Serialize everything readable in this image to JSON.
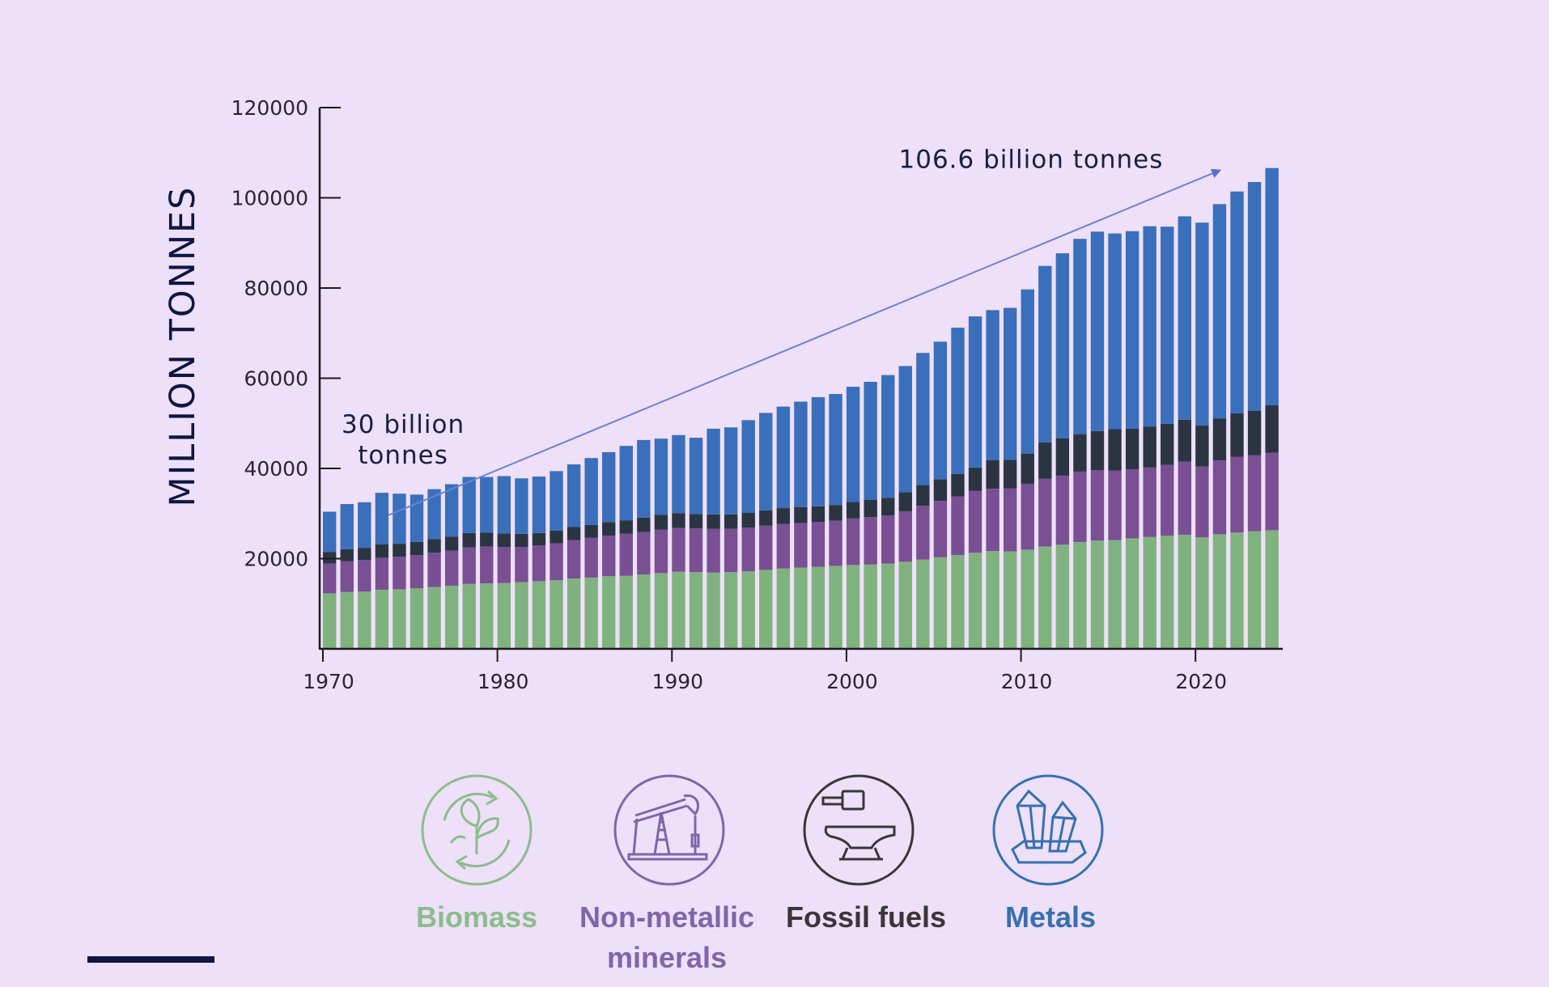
{
  "chart_data": {
    "type": "bar",
    "stacked": true,
    "ylabel": "MILLION TONNES",
    "xlabel": "",
    "ylim": [
      0,
      120000
    ],
    "yticks": [
      20000,
      40000,
      60000,
      80000,
      100000,
      120000
    ],
    "xticks": [
      1970,
      1980,
      1990,
      2000,
      2010,
      2020
    ],
    "grid": false,
    "legend_placement": "bottom",
    "x": [
      1970,
      1971,
      1972,
      1973,
      1974,
      1975,
      1976,
      1977,
      1978,
      1979,
      1980,
      1981,
      1982,
      1983,
      1984,
      1985,
      1986,
      1987,
      1988,
      1989,
      1990,
      1991,
      1992,
      1993,
      1994,
      1995,
      1996,
      1997,
      1998,
      1999,
      2000,
      2001,
      2002,
      2003,
      2004,
      2005,
      2006,
      2007,
      2008,
      2009,
      2010,
      2011,
      2012,
      2013,
      2014,
      2015,
      2016,
      2017,
      2018,
      2019,
      2020,
      2021,
      2022,
      2023,
      2024
    ],
    "series": [
      {
        "name": "Biomass",
        "color": "#7fb27e",
        "values": [
          12300,
          12600,
          12700,
          13100,
          13200,
          13400,
          13700,
          14000,
          14400,
          14500,
          14600,
          14800,
          15000,
          15200,
          15600,
          15800,
          16100,
          16200,
          16500,
          16800,
          17100,
          17000,
          16900,
          17000,
          17200,
          17500,
          17800,
          18000,
          18200,
          18400,
          18600,
          18700,
          18900,
          19300,
          19800,
          20300,
          20800,
          21300,
          21700,
          21600,
          22000,
          22700,
          23100,
          23700,
          24000,
          24100,
          24500,
          24800,
          25100,
          25300,
          24700,
          25400,
          25800,
          26100,
          26300
        ]
      },
      {
        "name": "Non-metallic minerals",
        "color": "#7a4f94",
        "values": [
          6600,
          6800,
          7000,
          7100,
          7200,
          7400,
          7600,
          7800,
          8100,
          8200,
          8000,
          7800,
          7900,
          8200,
          8500,
          8800,
          9000,
          9300,
          9400,
          9600,
          9700,
          9700,
          9700,
          9600,
          9700,
          9800,
          9900,
          9900,
          9900,
          10000,
          10300,
          10500,
          10700,
          11200,
          11900,
          12500,
          13000,
          13700,
          13800,
          14000,
          14600,
          15000,
          15300,
          15600,
          15600,
          15400,
          15300,
          15400,
          15700,
          16200,
          15700,
          16400,
          16800,
          16800,
          17200
        ]
      },
      {
        "name": "Fossil fuels",
        "color": "#2b3542",
        "values": [
          2600,
          2700,
          2700,
          3000,
          2900,
          2900,
          3000,
          3100,
          3200,
          3100,
          3000,
          2900,
          2800,
          2800,
          2900,
          2900,
          3000,
          3000,
          3200,
          3300,
          3300,
          3200,
          3200,
          3200,
          3300,
          3400,
          3500,
          3500,
          3500,
          3500,
          3700,
          3800,
          3900,
          4200,
          4600,
          4800,
          5000,
          5200,
          6300,
          6300,
          6700,
          8100,
          8300,
          8300,
          8700,
          9200,
          9000,
          9100,
          9100,
          9300,
          9100,
          9300,
          9600,
          9900,
          10500
        ]
      },
      {
        "name": "Metals",
        "color": "#3a6fbb",
        "values": [
          8900,
          10000,
          10100,
          11400,
          11100,
          10500,
          11100,
          11600,
          12400,
          12300,
          12700,
          12300,
          12500,
          13200,
          13900,
          14800,
          15500,
          16500,
          17200,
          16900,
          17300,
          16900,
          19000,
          19300,
          20500,
          21600,
          22500,
          23400,
          24200,
          24600,
          25500,
          26200,
          27200,
          28000,
          29300,
          30500,
          32400,
          33500,
          33300,
          33700,
          36400,
          39100,
          41000,
          43300,
          44200,
          43400,
          43800,
          44400,
          43700,
          45100,
          45000,
          47500,
          49200,
          50700,
          52600
        ]
      }
    ],
    "annotations": [
      {
        "text_line1": "30 billion",
        "text_line2": "tonnes",
        "x": 1973,
        "y": 30000
      },
      {
        "text": "106.6 billion tonnes",
        "x": 2021,
        "y": 106600
      }
    ]
  },
  "legend": [
    {
      "label": "Biomass",
      "label_line2": "",
      "color": "#8cbc8b",
      "icon": "leaf-recycle-icon"
    },
    {
      "label": "Non-metallic",
      "label_line2": "minerals",
      "color": "#7f66a8",
      "icon": "pumpjack-icon"
    },
    {
      "label": "Fossil fuels",
      "label_line2": "",
      "color": "#3a3638",
      "icon": "anvil-hammer-icon"
    },
    {
      "label": "Metals",
      "label_line2": "",
      "color": "#3770b0",
      "icon": "crystals-icon"
    }
  ]
}
